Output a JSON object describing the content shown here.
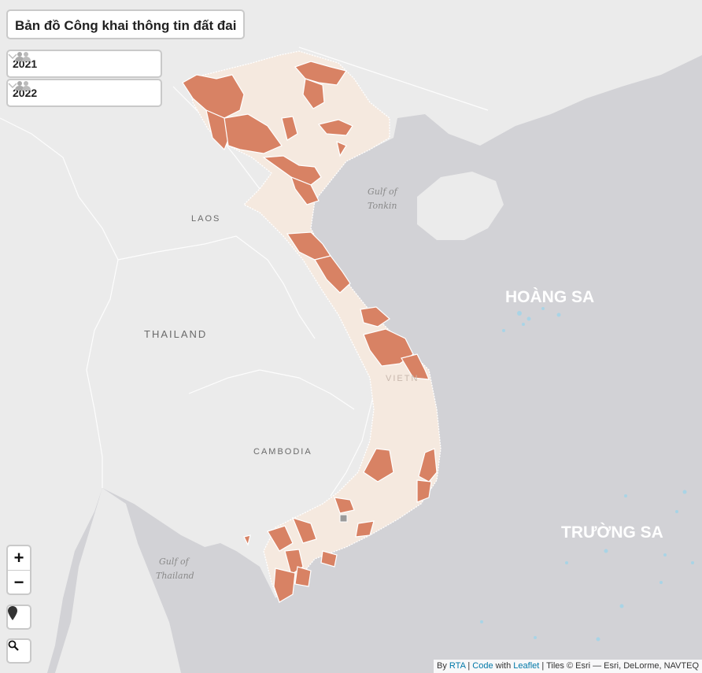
{
  "title": "Bản đồ Công khai thông tin đất đai",
  "year_selectors": [
    {
      "label": "2021",
      "icon": "users-icon"
    },
    {
      "label": "2022",
      "icon": "users-icon"
    }
  ],
  "controls": {
    "zoom_in": "+",
    "zoom_out": "−",
    "locate_icon": "map-marker-icon",
    "search_icon": "search-icon"
  },
  "labels": {
    "laos": "LAOS",
    "thailand": "THAILAND",
    "cambodia": "CAMBODIA",
    "vietnam": "VIETN",
    "gulf_tonkin_1": "Gulf of",
    "gulf_tonkin_2": "Tonkin",
    "gulf_thailand_1": "Gulf of",
    "gulf_thailand_2": "Thailand",
    "hoang_sa": "HOÀNG SA",
    "truong_sa": "TRƯỜNG SA"
  },
  "attribution": {
    "by": "By ",
    "rta": "RTA",
    "sep1": " | ",
    "code": "Code",
    "with": " with ",
    "leaflet": "Leaflet",
    "tiles": " | Tiles © Esri — Esri, DeLorme, NAVTEQ"
  },
  "colors": {
    "water": "#d2d2d6",
    "land": "#ebebeb",
    "province_light": "#f5e9df",
    "province_highlight": "#d88264",
    "border": "#ffffff"
  }
}
